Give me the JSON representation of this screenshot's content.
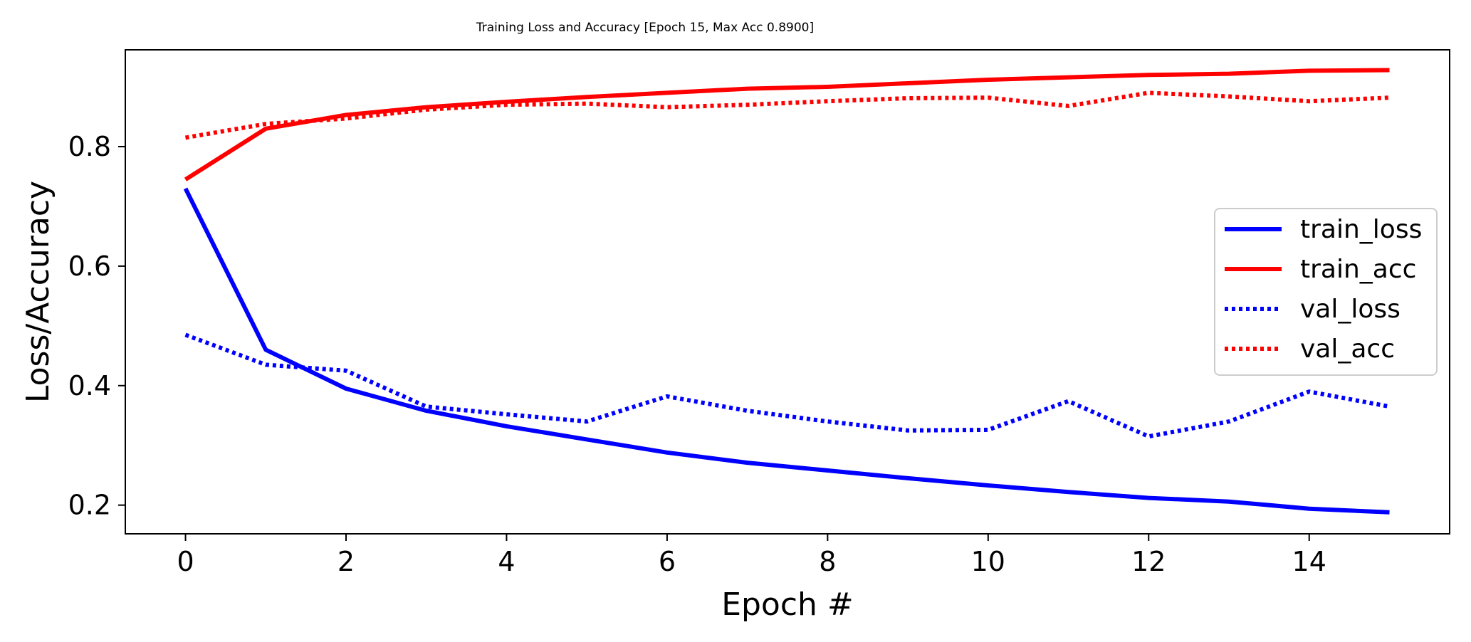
{
  "chart_data": {
    "type": "line",
    "title": "Training Loss and Accuracy [Epoch 15, Max Acc 0.8900]",
    "xlabel": "Epoch #",
    "ylabel": "Loss/Accuracy",
    "xlim": [
      -0.75,
      15.75
    ],
    "ylim": [
      0.152,
      0.962
    ],
    "x": [
      0,
      1,
      2,
      3,
      4,
      5,
      6,
      7,
      8,
      9,
      10,
      11,
      12,
      13,
      14,
      15
    ],
    "xticks": [
      0,
      2,
      4,
      6,
      8,
      10,
      12,
      14
    ],
    "xtick_labels": [
      "0",
      "2",
      "4",
      "6",
      "8",
      "10",
      "12",
      "14"
    ],
    "yticks": [
      0.2,
      0.4,
      0.6,
      0.8
    ],
    "ytick_labels": [
      "0.2",
      "0.4",
      "0.6",
      "0.8"
    ],
    "grid": false,
    "legend_position": "center-right",
    "series": [
      {
        "name": "train_loss",
        "color": "#0000ff",
        "style": "solid",
        "values": [
          0.73,
          0.46,
          0.395,
          0.358,
          0.332,
          0.31,
          0.288,
          0.271,
          0.258,
          0.245,
          0.233,
          0.222,
          0.212,
          0.206,
          0.194,
          0.188
        ]
      },
      {
        "name": "train_acc",
        "color": "#ff0000",
        "style": "solid",
        "values": [
          0.745,
          0.83,
          0.853,
          0.866,
          0.875,
          0.883,
          0.89,
          0.897,
          0.9,
          0.906,
          0.912,
          0.916,
          0.92,
          0.922,
          0.927,
          0.928
        ]
      },
      {
        "name": "val_loss",
        "color": "#0000ff",
        "style": "dotted",
        "values": [
          0.485,
          0.435,
          0.425,
          0.365,
          0.352,
          0.34,
          0.382,
          0.358,
          0.34,
          0.325,
          0.326,
          0.374,
          0.315,
          0.34,
          0.39,
          0.365
        ]
      },
      {
        "name": "val_acc",
        "color": "#ff0000",
        "style": "dotted",
        "values": [
          0.815,
          0.838,
          0.847,
          0.862,
          0.87,
          0.872,
          0.866,
          0.87,
          0.876,
          0.881,
          0.882,
          0.868,
          0.89,
          0.884,
          0.876,
          0.882
        ]
      }
    ]
  }
}
